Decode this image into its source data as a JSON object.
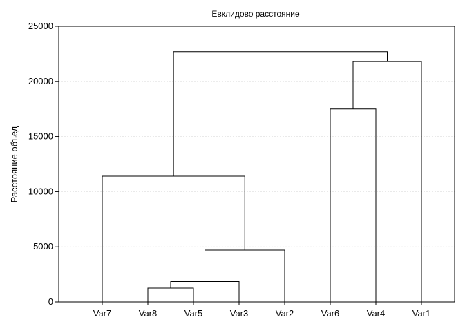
{
  "chart_data": {
    "type": "dendrogram",
    "title": "Евклидово расстояние",
    "xlabel": "",
    "ylabel": "Расстояние объед",
    "ylim": [
      0,
      25000
    ],
    "yticks": [
      0,
      5000,
      10000,
      15000,
      20000,
      25000
    ],
    "grid": true,
    "leaves": [
      "Var7",
      "Var8",
      "Var5",
      "Var3",
      "Var2",
      "Var6",
      "Var4",
      "Var1"
    ],
    "merges": [
      {
        "left": "Var8",
        "right": "Var5",
        "height": 1250
      },
      {
        "left": "Var8+Var5",
        "right": "Var3",
        "height": 1850
      },
      {
        "left": "Var8+Var5+Var3",
        "right": "Var2",
        "height": 4700
      },
      {
        "left": "Var7",
        "right": "Var8+Var5+Var3+Var2",
        "height": 11400
      },
      {
        "left": "Var6",
        "right": "Var4",
        "height": 17500
      },
      {
        "left": "Var6+Var4",
        "right": "Var1",
        "height": 21800
      },
      {
        "left": "Var7+Var8+Var5+Var3+Var2",
        "right": "Var6+Var4+Var1",
        "height": 22700
      }
    ]
  }
}
